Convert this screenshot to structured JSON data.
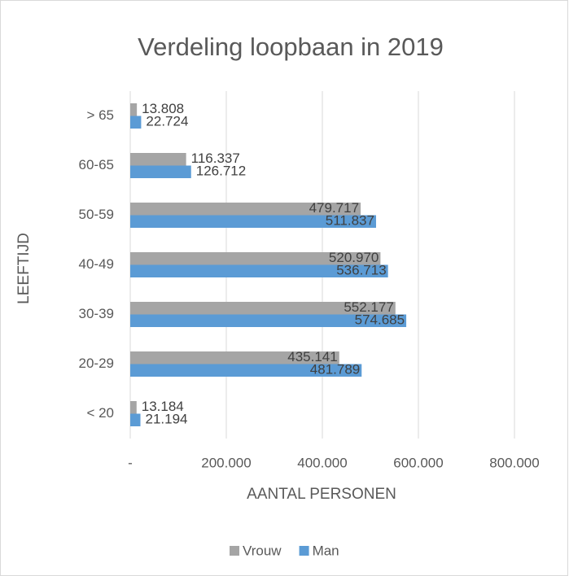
{
  "chart_data": {
    "type": "hbar",
    "title": "Verdeling loopbaan in 2019",
    "xlabel": "AANTAL PERSONEN",
    "ylabel": "LEEFTIJD",
    "categories": [
      "< 20",
      "20-29",
      "30-39",
      "40-49",
      "50-59",
      "60-65",
      "> 65"
    ],
    "series": [
      {
        "name": "Vrouw",
        "color": "#a5a5a5",
        "values": [
          13184,
          435141,
          552177,
          520970,
          479717,
          116337,
          13808
        ],
        "value_labels": [
          "13.184",
          "435.141",
          "552.177",
          "520.970",
          "479.717",
          "116.337",
          "13.808"
        ]
      },
      {
        "name": "Man",
        "color": "#5b9bd5",
        "values": [
          21194,
          481789,
          574685,
          536713,
          511837,
          126712,
          22724
        ],
        "value_labels": [
          "21.194",
          "481.789",
          "574.685",
          "536.713",
          "511.837",
          "126.712",
          "22.724"
        ]
      }
    ],
    "xlim": [
      0,
      800000
    ],
    "xticks": [
      {
        "value": 0,
        "label": "-"
      },
      {
        "value": 200000,
        "label": "200.000"
      },
      {
        "value": 400000,
        "label": "400.000"
      },
      {
        "value": 600000,
        "label": "600.000"
      },
      {
        "value": 800000,
        "label": "800.000"
      }
    ],
    "grid": true,
    "legend": "bottom"
  }
}
